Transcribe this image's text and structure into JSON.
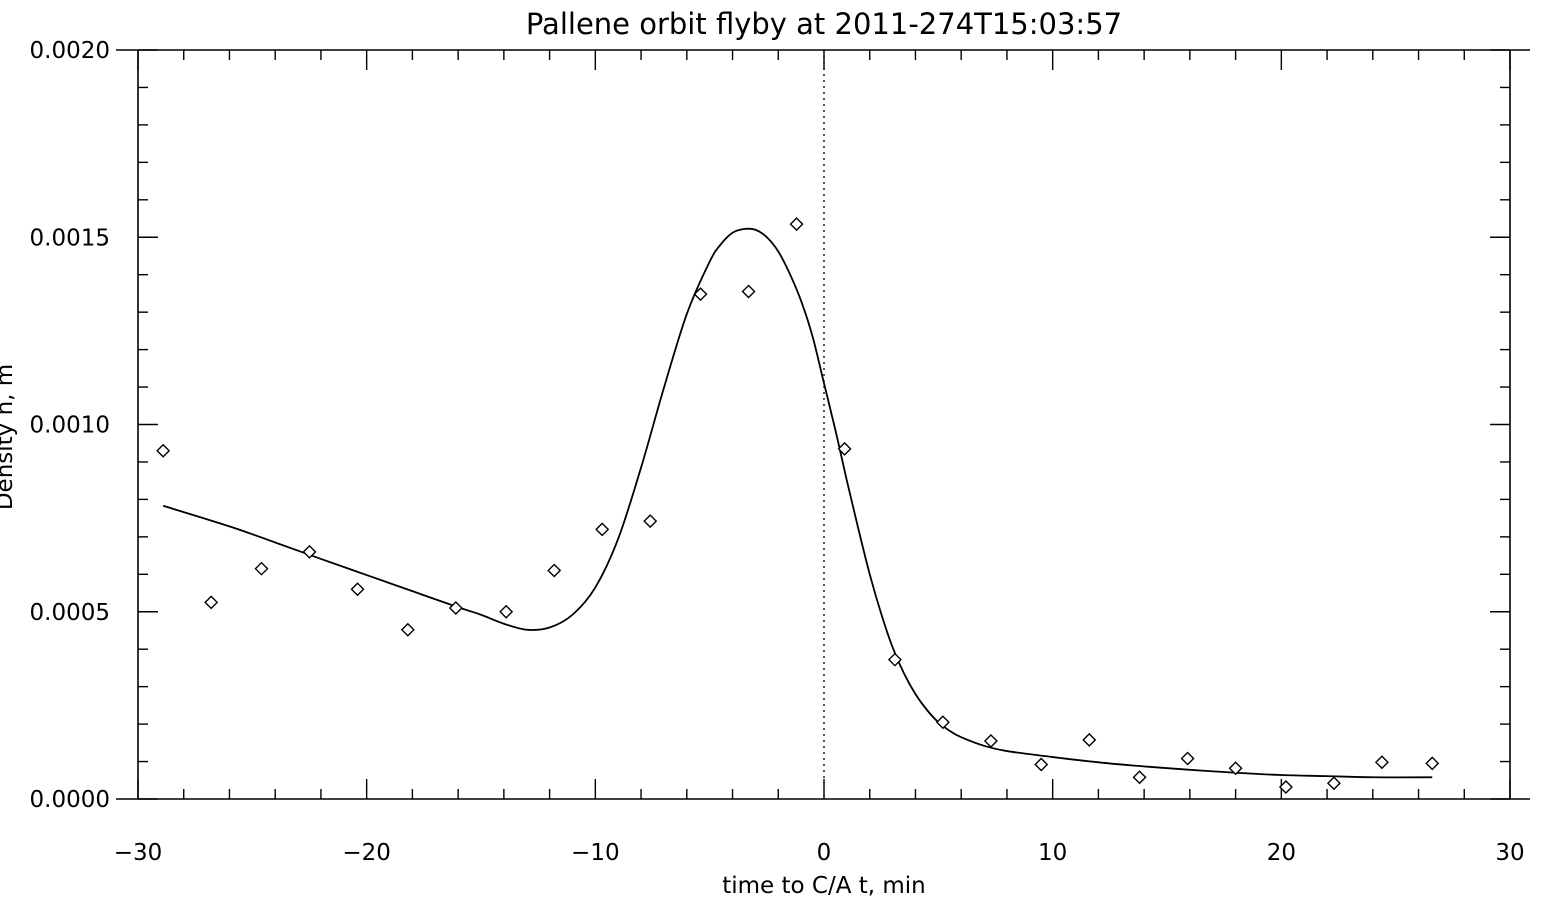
{
  "chart_data": {
    "type": "scatter",
    "title": "Pallene orbit flyby at 2011-274T15:03:57",
    "xlabel": "time to C/A t, min",
    "ylabel": "Density n, m",
    "xlim": [
      -30,
      30
    ],
    "ylim": [
      0,
      0.002
    ],
    "x_ticks": [
      -30,
      -20,
      -10,
      0,
      10,
      20,
      30
    ],
    "x_tick_labels": [
      "−30",
      "−20",
      "−10",
      "0",
      "10",
      "20",
      "30"
    ],
    "y_ticks": [
      0,
      0.0005,
      0.001,
      0.0015,
      0.002
    ],
    "y_tick_labels": [
      "0.0000",
      "0.0005",
      "0.0010",
      "0.0015",
      "0.0020"
    ],
    "vertical_reference_line": {
      "x": 0,
      "style": "dotted"
    },
    "grid": false,
    "series": [
      {
        "kind": "points",
        "marker": "diamond",
        "x": [
          -28.9,
          -26.8,
          -24.6,
          -22.5,
          -20.4,
          -18.2,
          -16.1,
          -13.9,
          -11.8,
          -9.7,
          -7.6,
          -5.4,
          -3.3,
          -1.2,
          0.9,
          3.1,
          5.2,
          7.3,
          9.5,
          11.6,
          13.8,
          15.9,
          18.0,
          20.2,
          22.3,
          24.4,
          26.6
        ],
        "y": [
          0.00093,
          0.000525,
          0.000615,
          0.00066,
          0.00056,
          0.000452,
          0.00051,
          0.0005,
          0.00061,
          0.00072,
          0.000742,
          0.001348,
          0.001355,
          0.001535,
          0.000935,
          0.000372,
          0.000205,
          0.000155,
          9.2e-05,
          0.000158,
          5.8e-05,
          0.000108,
          8.2e-05,
          3.2e-05,
          4.2e-05,
          9.8e-05,
          9.5e-05
        ]
      },
      {
        "kind": "fit",
        "line": "solid",
        "x": [
          -28.9,
          -26,
          -24,
          -22,
          -20,
          -18,
          -16,
          -15,
          -14,
          -13,
          -12,
          -11,
          -10,
          -9,
          -8,
          -7,
          -6,
          -5,
          -4.5,
          -4,
          -3.5,
          -3,
          -2.5,
          -2,
          -1.5,
          -1,
          -0.5,
          0,
          0.5,
          1,
          1.5,
          2,
          2.5,
          3,
          3.5,
          4,
          4.5,
          5,
          5.5,
          6,
          7,
          8,
          10,
          12,
          14,
          16,
          18,
          20,
          22,
          24,
          26.6
        ],
        "y": [
          0.000783,
          0.000728,
          0.000685,
          0.000641,
          0.000598,
          0.000555,
          0.000512,
          0.000492,
          0.000468,
          0.000452,
          0.000458,
          0.000492,
          0.000565,
          0.000695,
          0.000885,
          0.001098,
          0.001295,
          0.001435,
          0.001482,
          0.001512,
          0.001522,
          0.00152,
          0.0015,
          0.001462,
          0.001403,
          0.00133,
          0.001235,
          0.00111,
          0.000985,
          0.00085,
          0.000722,
          0.0006,
          0.000495,
          0.000405,
          0.000335,
          0.00028,
          0.000238,
          0.000205,
          0.000182,
          0.000165,
          0.000142,
          0.000128,
          0.000112,
          9.8e-05,
          8.7e-05,
          7.8e-05,
          7e-05,
          6.4e-05,
          6.1e-05,
          5.8e-05,
          5.8e-05
        ]
      }
    ]
  }
}
